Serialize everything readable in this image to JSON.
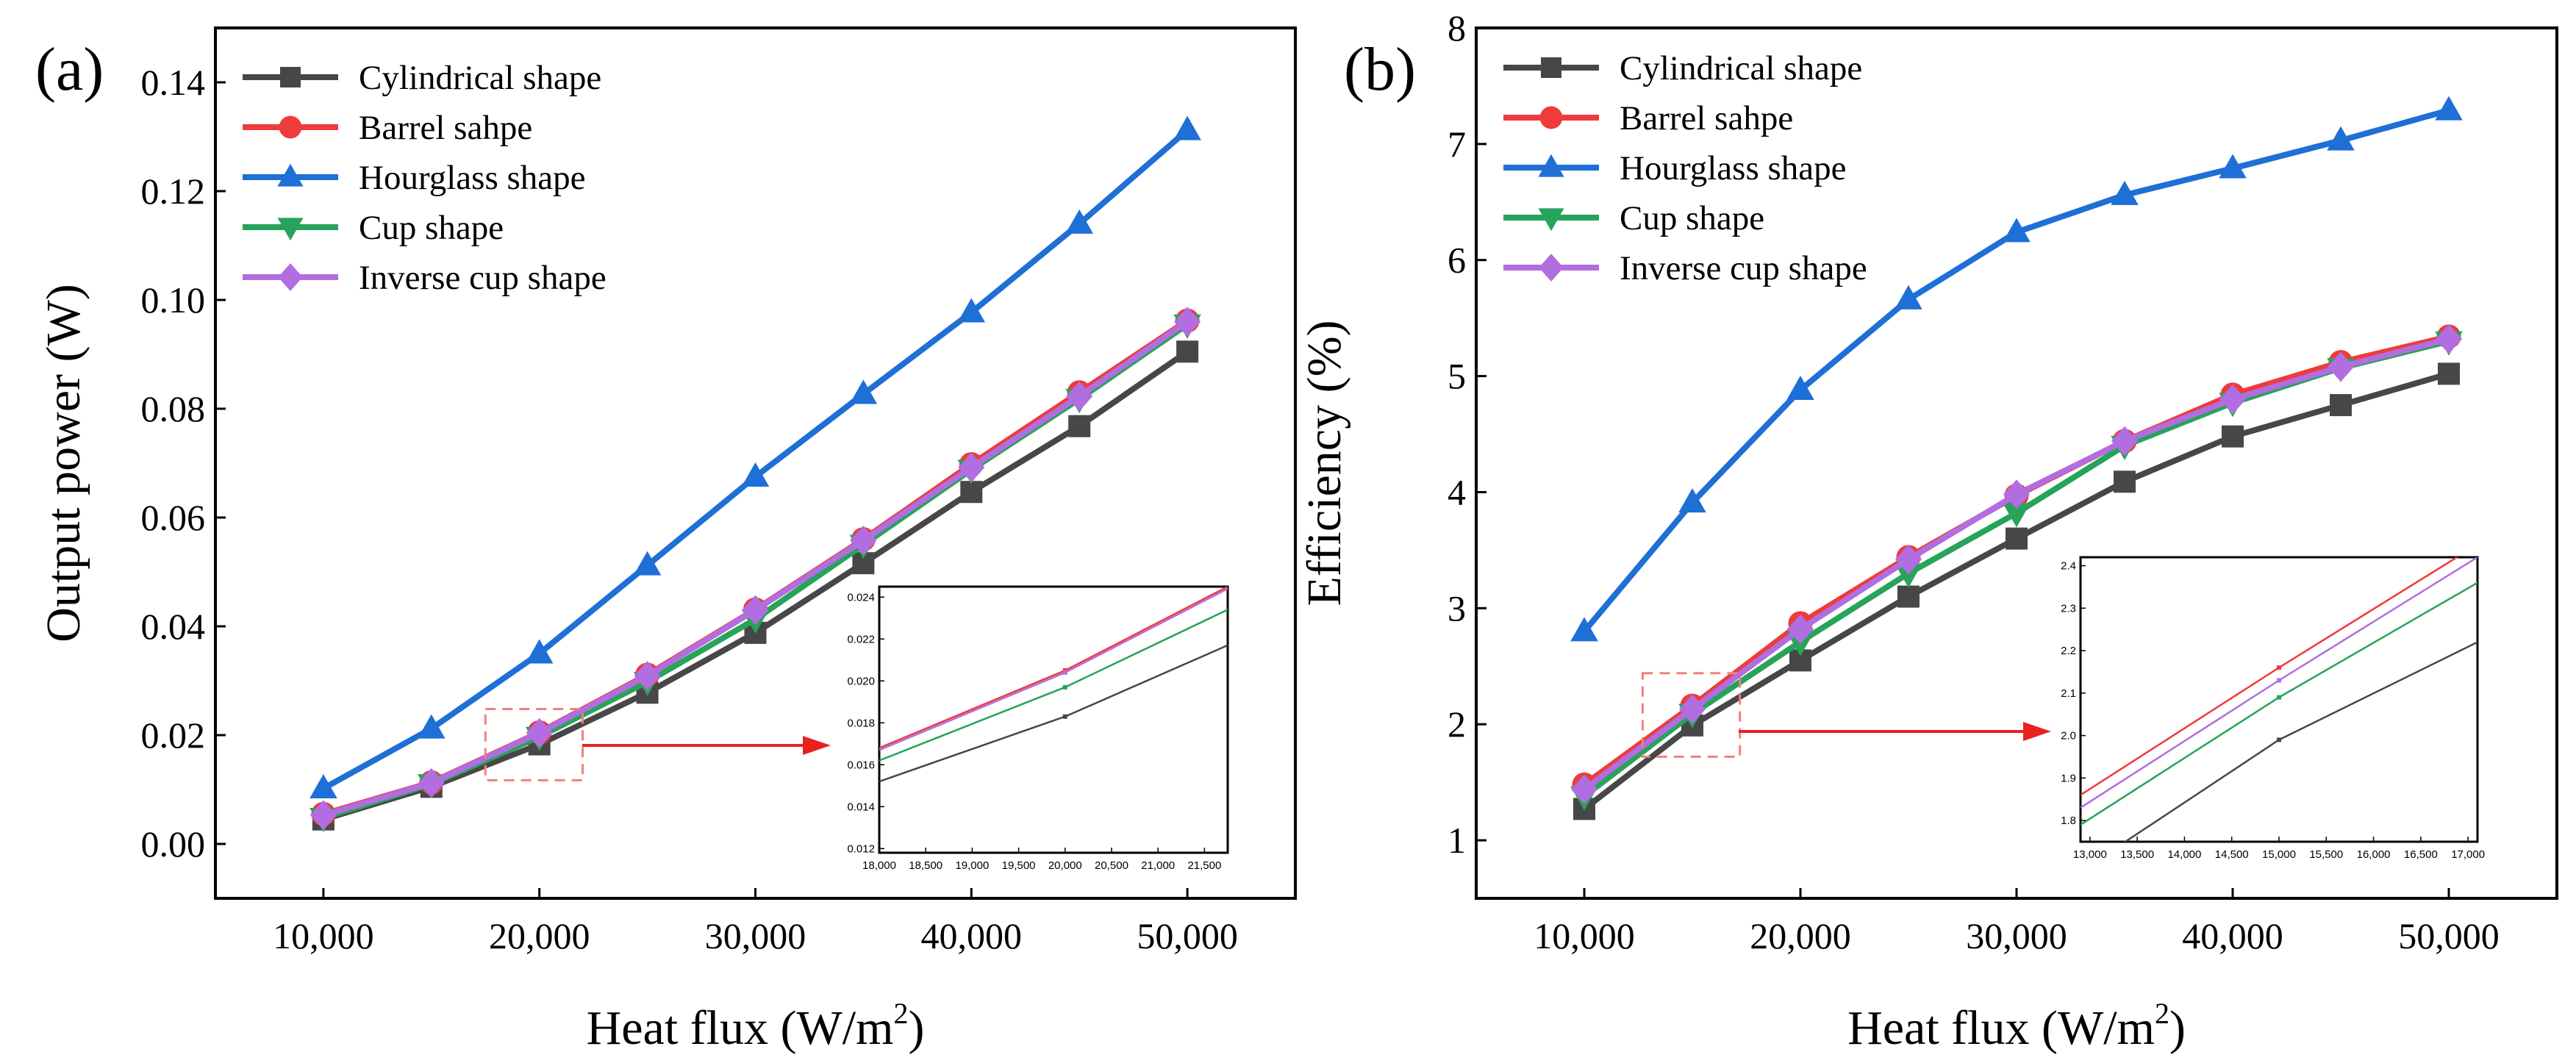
{
  "figure": {
    "panels": [
      "(a)",
      "(b)"
    ]
  },
  "chart_data": [
    {
      "type": "line",
      "panel_label": "(a)",
      "title": "",
      "xlabel": "Heat flux (W/m",
      "xlabel_sup": "2",
      "xlabel_close": ")",
      "ylabel": "Output power (W)",
      "xlim": [
        5000,
        55000
      ],
      "ylim": [
        -0.01,
        0.15
      ],
      "x": [
        10000,
        15000,
        20000,
        25000,
        30000,
        35000,
        40000,
        45000,
        50000
      ],
      "x_ticks": [
        10000,
        20000,
        30000,
        40000,
        50000
      ],
      "x_tick_labels": [
        "10,000",
        "20,000",
        "30,000",
        "40,000",
        "50,000"
      ],
      "y_ticks": [
        0,
        0.02,
        0.04,
        0.06,
        0.08,
        0.1,
        0.12,
        0.14
      ],
      "y_tick_labels": [
        "0.00",
        "0.02",
        "0.04",
        "0.06",
        "0.08",
        "0.10",
        "0.12",
        "0.14"
      ],
      "legend_position": "top-left",
      "series": [
        {
          "name": "Cylindrical shape",
          "color": "#474747",
          "marker": "square",
          "values": [
            0.0045,
            0.0105,
            0.0183,
            0.0278,
            0.0388,
            0.0516,
            0.0647,
            0.0768,
            0.0905
          ]
        },
        {
          "name": "Barrel sahpe",
          "color": "#ee3b3b",
          "marker": "circle",
          "values": [
            0.0055,
            0.0113,
            0.0205,
            0.0311,
            0.0431,
            0.056,
            0.0698,
            0.083,
            0.0962
          ]
        },
        {
          "name": "Hourglass shape",
          "color": "#1e6fd6",
          "marker": "triangle-up",
          "values": [
            0.0102,
            0.0212,
            0.035,
            0.0512,
            0.0675,
            0.0827,
            0.0977,
            0.114,
            0.1312
          ]
        },
        {
          "name": "Cup shape",
          "color": "#27a35a",
          "marker": "triangle-down",
          "values": [
            0.0048,
            0.011,
            0.0197,
            0.0298,
            0.0413,
            0.055,
            0.0688,
            0.0818,
            0.0955
          ]
        },
        {
          "name": "Inverse cup shape",
          "color": "#b26de0",
          "marker": "diamond",
          "values": [
            0.0053,
            0.0112,
            0.0204,
            0.0309,
            0.043,
            0.0558,
            0.0692,
            0.0823,
            0.096
          ]
        }
      ],
      "inset": {
        "zoom_box": {
          "x_range": [
            17500,
            22000
          ],
          "y_range": [
            0.0117,
            0.0248
          ]
        },
        "xlim": [
          18000,
          21750
        ],
        "ylim": [
          0.0118,
          0.0245
        ],
        "x_ticks": [
          18000,
          18500,
          19000,
          19500,
          20000,
          20500,
          21000,
          21500
        ],
        "x_tick_labels": [
          "18,000",
          "18,500",
          "19,000",
          "19,500",
          "20,000",
          "20,500",
          "21,000",
          "21,500"
        ],
        "y_ticks": [
          0.012,
          0.014,
          0.016,
          0.018,
          0.02,
          0.022,
          0.024
        ],
        "y_tick_labels": [
          "0.012",
          "0.014",
          "0.016",
          "0.018",
          "0.020",
          "0.022",
          "0.024"
        ],
        "marker_x": 20000,
        "lines": [
          {
            "name": "Cylindrical shape",
            "color": "#474747",
            "points": [
              [
                18000,
                0.0152
              ],
              [
                20000,
                0.0183
              ],
              [
                21750,
                0.0217
              ]
            ]
          },
          {
            "name": "Barrel sahpe",
            "color": "#ee3b3b",
            "points": [
              [
                18000,
                0.0168
              ],
              [
                20000,
                0.0205
              ],
              [
                21750,
                0.0245
              ]
            ]
          },
          {
            "name": "Cup shape",
            "color": "#27a35a",
            "points": [
              [
                18000,
                0.0162
              ],
              [
                20000,
                0.0197
              ],
              [
                21750,
                0.0234
              ]
            ]
          },
          {
            "name": "Inverse cup shape",
            "color": "#b26de0",
            "points": [
              [
                18000,
                0.0167
              ],
              [
                20000,
                0.0204
              ],
              [
                21750,
                0.0244
              ]
            ]
          }
        ]
      }
    },
    {
      "type": "line",
      "panel_label": "(b)",
      "title": "",
      "xlabel": "Heat flux (W/m",
      "xlabel_sup": "2",
      "xlabel_close": ")",
      "ylabel": "Efficiency (%)",
      "xlim": [
        5000,
        55000
      ],
      "ylim": [
        0.5,
        8
      ],
      "x": [
        10000,
        15000,
        20000,
        25000,
        30000,
        35000,
        40000,
        45000,
        50000
      ],
      "x_ticks": [
        10000,
        20000,
        30000,
        40000,
        50000
      ],
      "x_tick_labels": [
        "10,000",
        "20,000",
        "30,000",
        "40,000",
        "50,000"
      ],
      "y_ticks": [
        1,
        2,
        3,
        4,
        5,
        6,
        7,
        8
      ],
      "y_tick_labels": [
        "1",
        "2",
        "3",
        "4",
        "5",
        "6",
        "7",
        "8"
      ],
      "legend_position": "top-left",
      "series": [
        {
          "name": "Cylindrical shape",
          "color": "#474747",
          "marker": "square",
          "values": [
            1.27,
            1.99,
            2.55,
            3.1,
            3.6,
            4.09,
            4.48,
            4.75,
            5.02
          ]
        },
        {
          "name": "Barrel sahpe",
          "color": "#ee3b3b",
          "marker": "circle",
          "values": [
            1.48,
            2.16,
            2.87,
            3.44,
            3.97,
            4.44,
            4.84,
            5.12,
            5.34
          ]
        },
        {
          "name": "Hourglass shape",
          "color": "#1e6fd6",
          "marker": "triangle-up",
          "values": [
            2.8,
            3.91,
            4.88,
            5.66,
            6.24,
            6.56,
            6.79,
            7.03,
            7.29
          ]
        },
        {
          "name": "Cup shape",
          "color": "#27a35a",
          "marker": "triangle-down",
          "values": [
            1.38,
            2.09,
            2.71,
            3.3,
            3.82,
            4.4,
            4.77,
            5.07,
            5.3
          ]
        },
        {
          "name": "Inverse cup shape",
          "color": "#b26de0",
          "marker": "diamond",
          "values": [
            1.44,
            2.13,
            2.82,
            3.42,
            3.98,
            4.44,
            4.8,
            5.08,
            5.32
          ]
        }
      ],
      "inset": {
        "zoom_box": {
          "x_range": [
            12700,
            17200
          ],
          "y_range": [
            1.72,
            2.44
          ]
        },
        "xlim": [
          12900,
          17100
        ],
        "ylim": [
          1.75,
          2.42
        ],
        "x_ticks": [
          13000,
          13500,
          14000,
          14500,
          15000,
          15500,
          16000,
          16500,
          17000
        ],
        "x_tick_labels": [
          "13,000",
          "13,500",
          "14,000",
          "14,500",
          "15,000",
          "15,500",
          "16,000",
          "16,500",
          "17,000"
        ],
        "y_ticks": [
          1.8,
          1.9,
          2.0,
          2.1,
          2.2,
          2.3,
          2.4
        ],
        "y_tick_labels": [
          "1.8",
          "1.9",
          "2.0",
          "2.1",
          "2.2",
          "2.3",
          "2.4"
        ],
        "marker_x": 15000,
        "lines": [
          {
            "name": "Cylindrical shape",
            "color": "#474747",
            "points": [
              [
                12900,
                1.68
              ],
              [
                15000,
                1.99
              ],
              [
                17100,
                2.22
              ]
            ]
          },
          {
            "name": "Barrel sahpe",
            "color": "#ee3b3b",
            "points": [
              [
                12900,
                1.86
              ],
              [
                15000,
                2.16
              ],
              [
                17100,
                2.45
              ]
            ]
          },
          {
            "name": "Cup shape",
            "color": "#27a35a",
            "points": [
              [
                12900,
                1.79
              ],
              [
                15000,
                2.09
              ],
              [
                17100,
                2.36
              ]
            ]
          },
          {
            "name": "Inverse cup shape",
            "color": "#b26de0",
            "points": [
              [
                12900,
                1.83
              ],
              [
                15000,
                2.13
              ],
              [
                17100,
                2.42
              ]
            ]
          }
        ]
      }
    }
  ]
}
